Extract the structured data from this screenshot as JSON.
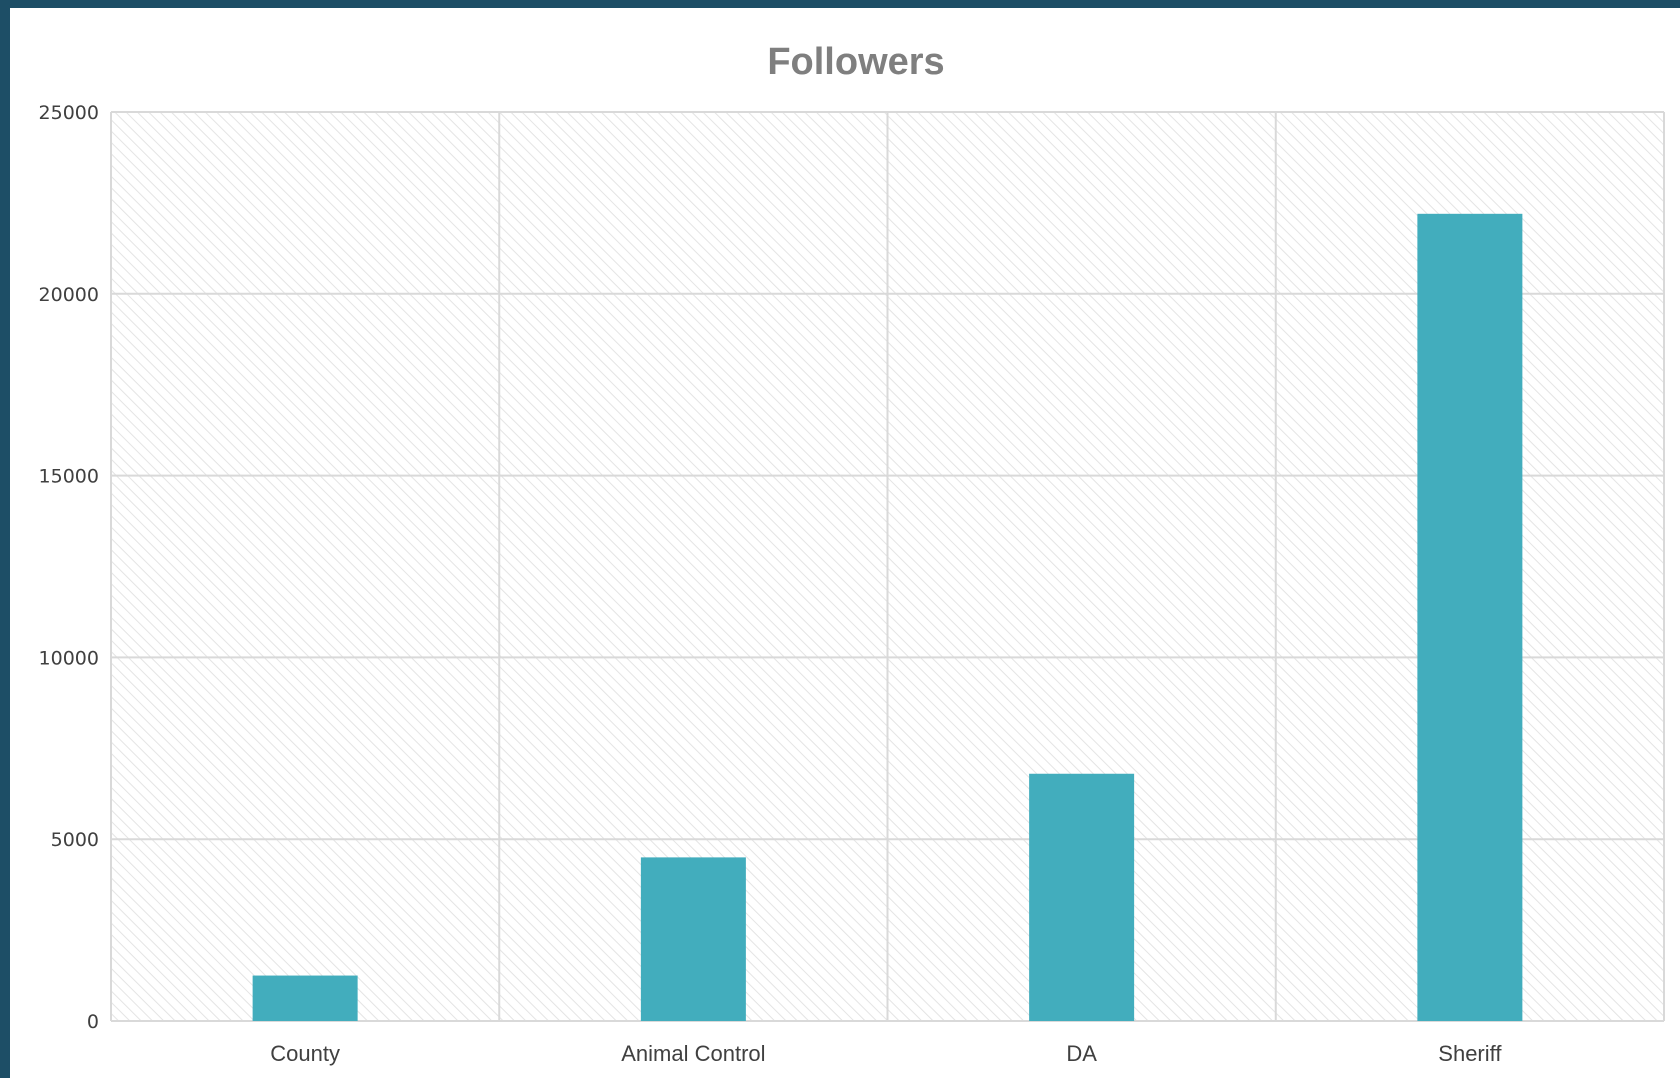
{
  "chart_data": {
    "type": "bar",
    "title": "Followers",
    "categories": [
      "County",
      "Animal Control",
      "DA",
      "Sheriff"
    ],
    "values": [
      1250,
      4500,
      6800,
      22200
    ],
    "yticks": [
      "0",
      "5000",
      "10000",
      "15000",
      "20000",
      "25000"
    ],
    "ylim": [
      0,
      25000
    ],
    "xlabel": "",
    "ylabel": "",
    "grid": true,
    "legend": "none",
    "colors": {
      "bar": "#42adbd",
      "grid": "#d9d9d9",
      "hatch": "#e4e4e4",
      "frame": "#1d4e66"
    }
  }
}
